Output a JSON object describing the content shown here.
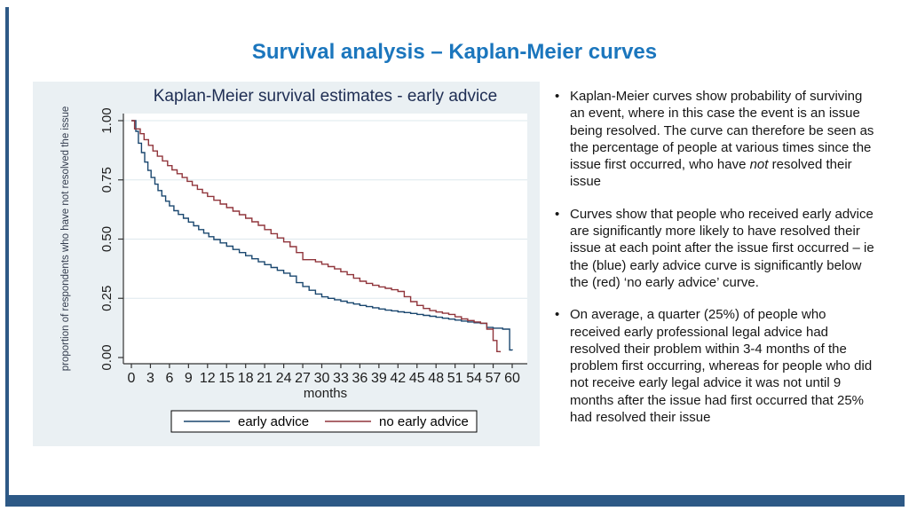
{
  "slide": {
    "title": "Survival analysis – Kaplan-Meier curves",
    "title_color": "#1b76bd",
    "accent_color": "#2d5986"
  },
  "chart_data": {
    "type": "line",
    "variant": "kaplan-meier-step",
    "title": "Kaplan-Meier survival estimates - early advice",
    "xlabel": "months",
    "ylabel": "proportion of respondents who have not resolved the issue",
    "xlim": [
      0,
      60
    ],
    "ylim": [
      0,
      1
    ],
    "x_ticks": [
      0,
      3,
      6,
      9,
      12,
      15,
      18,
      21,
      24,
      27,
      30,
      33,
      36,
      39,
      42,
      45,
      48,
      51,
      54,
      57,
      60
    ],
    "y_ticks": [
      {
        "v": 0.0,
        "label": "0.00"
      },
      {
        "v": 0.25,
        "label": "0.25"
      },
      {
        "v": 0.5,
        "label": "0.50"
      },
      {
        "v": 0.75,
        "label": "0.75"
      },
      {
        "v": 1.0,
        "label": "1.00"
      }
    ],
    "grid": true,
    "legend_position": "bottom-center",
    "colors": {
      "figure_bg": "#eaf0f3",
      "plot_bg": "#ffffff",
      "grid": "#dde8ed",
      "axis": "#333333",
      "tick_text": "#1d1d1d",
      "title_text": "#1e2d53",
      "ylabel_text": "#333c4e",
      "legend_border": "#000000",
      "legend_bg": "#ffffff"
    },
    "series": [
      {
        "name": "early advice",
        "color": "#1a476f",
        "points": [
          [
            0,
            1.0
          ],
          [
            0.7,
            0.955
          ],
          [
            1.1,
            0.905
          ],
          [
            1.6,
            0.865
          ],
          [
            2.1,
            0.825
          ],
          [
            2.6,
            0.79
          ],
          [
            3.1,
            0.76
          ],
          [
            3.7,
            0.732
          ],
          [
            4.2,
            0.705
          ],
          [
            4.8,
            0.682
          ],
          [
            5.4,
            0.66
          ],
          [
            6,
            0.64
          ],
          [
            6.7,
            0.62
          ],
          [
            7.4,
            0.604
          ],
          [
            8.2,
            0.588
          ],
          [
            9,
            0.572
          ],
          [
            9.8,
            0.556
          ],
          [
            10.6,
            0.54
          ],
          [
            11.4,
            0.525
          ],
          [
            12.2,
            0.51
          ],
          [
            13,
            0.498
          ],
          [
            14,
            0.484
          ],
          [
            15,
            0.47
          ],
          [
            16,
            0.456
          ],
          [
            17,
            0.443
          ],
          [
            18,
            0.43
          ],
          [
            19,
            0.417
          ],
          [
            20,
            0.404
          ],
          [
            21,
            0.392
          ],
          [
            22,
            0.38
          ],
          [
            23,
            0.368
          ],
          [
            24,
            0.356
          ],
          [
            25,
            0.344
          ],
          [
            26,
            0.316
          ],
          [
            27,
            0.3
          ],
          [
            28,
            0.284
          ],
          [
            29,
            0.268
          ],
          [
            30,
            0.256
          ],
          [
            31,
            0.25
          ],
          [
            32,
            0.244
          ],
          [
            33,
            0.238
          ],
          [
            34,
            0.231
          ],
          [
            35,
            0.226
          ],
          [
            36,
            0.22
          ],
          [
            37,
            0.215
          ],
          [
            38,
            0.21
          ],
          [
            39,
            0.205
          ],
          [
            40,
            0.2
          ],
          [
            41,
            0.197
          ],
          [
            42,
            0.193
          ],
          [
            43,
            0.19
          ],
          [
            44,
            0.186
          ],
          [
            45,
            0.182
          ],
          [
            46,
            0.178
          ],
          [
            47,
            0.174
          ],
          [
            48,
            0.17
          ],
          [
            49,
            0.166
          ],
          [
            50,
            0.162
          ],
          [
            51,
            0.158
          ],
          [
            52,
            0.154
          ],
          [
            53,
            0.15
          ],
          [
            54,
            0.147
          ],
          [
            55,
            0.144
          ],
          [
            56,
            0.127
          ],
          [
            57,
            0.124
          ],
          [
            58.5,
            0.12
          ],
          [
            59.6,
            0.032
          ],
          [
            60,
            0.03
          ]
        ]
      },
      {
        "name": "no early advice",
        "color": "#90353b",
        "points": [
          [
            0,
            1.0
          ],
          [
            0.5,
            0.965
          ],
          [
            1.4,
            0.945
          ],
          [
            2,
            0.92
          ],
          [
            2.7,
            0.896
          ],
          [
            3.4,
            0.872
          ],
          [
            4.1,
            0.85
          ],
          [
            4.9,
            0.83
          ],
          [
            5.7,
            0.81
          ],
          [
            6.4,
            0.792
          ],
          [
            7.2,
            0.776
          ],
          [
            8,
            0.76
          ],
          [
            8.8,
            0.744
          ],
          [
            9.6,
            0.727
          ],
          [
            10.4,
            0.71
          ],
          [
            11.2,
            0.695
          ],
          [
            12,
            0.68
          ],
          [
            13,
            0.664
          ],
          [
            14,
            0.648
          ],
          [
            15,
            0.633
          ],
          [
            16,
            0.618
          ],
          [
            17,
            0.603
          ],
          [
            18,
            0.588
          ],
          [
            19,
            0.573
          ],
          [
            20,
            0.558
          ],
          [
            21,
            0.54
          ],
          [
            22,
            0.523
          ],
          [
            23,
            0.505
          ],
          [
            24,
            0.488
          ],
          [
            25,
            0.468
          ],
          [
            26,
            0.443
          ],
          [
            27,
            0.413
          ],
          [
            29,
            0.404
          ],
          [
            30,
            0.394
          ],
          [
            31,
            0.384
          ],
          [
            32,
            0.374
          ],
          [
            33,
            0.362
          ],
          [
            34,
            0.35
          ],
          [
            35,
            0.335
          ],
          [
            36,
            0.322
          ],
          [
            37,
            0.313
          ],
          [
            38,
            0.305
          ],
          [
            39,
            0.298
          ],
          [
            40,
            0.292
          ],
          [
            41,
            0.286
          ],
          [
            42,
            0.279
          ],
          [
            43,
            0.257
          ],
          [
            44,
            0.236
          ],
          [
            45,
            0.22
          ],
          [
            46,
            0.207
          ],
          [
            47,
            0.198
          ],
          [
            48,
            0.192
          ],
          [
            49,
            0.187
          ],
          [
            50,
            0.182
          ],
          [
            51,
            0.172
          ],
          [
            52,
            0.163
          ],
          [
            53,
            0.156
          ],
          [
            54,
            0.15
          ],
          [
            55,
            0.145
          ],
          [
            56,
            0.12
          ],
          [
            57,
            0.072
          ],
          [
            57.6,
            0.025
          ],
          [
            58.1,
            0.022
          ]
        ]
      }
    ]
  },
  "notes": {
    "marker": "•",
    "bullets": [
      [
        {
          "text": "Kaplan-Meier curves show probability of surviving an event, where in this case the event is an issue being resolved. The curve can therefore be seen as the percentage of people at various times since the issue first occurred, who have "
        },
        {
          "text": "not",
          "italic": true
        },
        {
          "text": " resolved their issue"
        }
      ],
      [
        {
          "text": "Curves show that people who received early advice are significantly more likely to have resolved their issue at each point after the issue first occurred – ie the (blue) early advice curve is significantly below the (red) ‘no early advice’ curve."
        }
      ],
      [
        {
          "text": "On average, a quarter (25%) of people who received early professional legal advice had resolved their problem within 3-4 months of the problem first occurring, whereas for people who did not receive early legal advice it was not until 9 months after the issue had first occurred that 25% had resolved their issue"
        }
      ]
    ]
  }
}
